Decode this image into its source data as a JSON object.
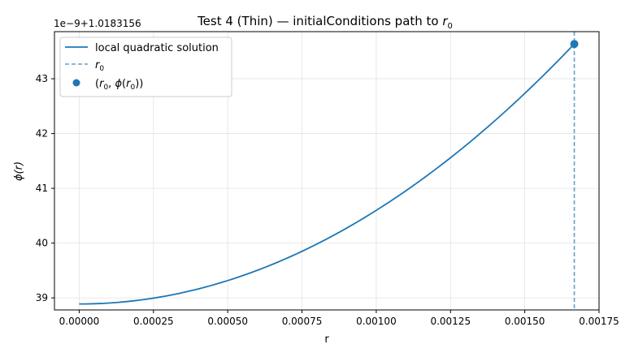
{
  "chart_data": {
    "type": "line",
    "title_main": "Test 4 (Thin) — initialConditions path to ",
    "title_sym": "r",
    "title_sub": "0",
    "xlabel": "r",
    "ylabel_sym": "ϕ(r)",
    "offset_text": "1e−9+1.0183156",
    "xlim": [
      -8.33e-05,
      0.00175
    ],
    "ylim": [
      38.78,
      43.86
    ],
    "x_ticks": [
      0,
      0.00025,
      0.0005,
      0.00075,
      0.001,
      0.00125,
      0.0015,
      0.00175
    ],
    "x_tick_labels": [
      "0.00000",
      "0.00025",
      "0.00050",
      "0.00075",
      "0.00100",
      "0.00125",
      "0.00150",
      "0.00175"
    ],
    "y_ticks": [
      39,
      40,
      41,
      42,
      43
    ],
    "y_tick_labels": [
      "39",
      "40",
      "41",
      "42",
      "43"
    ],
    "grid": true,
    "legend_position": "upper-left",
    "series": [
      {
        "name": "local quadratic solution",
        "style": "solid",
        "color": "#1f77b4",
        "x_range": [
          0,
          0.0016667
        ],
        "y_start": 38.889,
        "y_end": 43.635,
        "curve": "quadratic"
      }
    ],
    "vline": {
      "legend_sym": "r",
      "legend_sub": "0",
      "x": 0.0016667,
      "style": "dashed",
      "color": "#1f77b4"
    },
    "point": {
      "legend_text": "(r0, ϕ(r0))",
      "x": 0.0016667,
      "y": 43.635,
      "color": "#1f77b4"
    }
  }
}
